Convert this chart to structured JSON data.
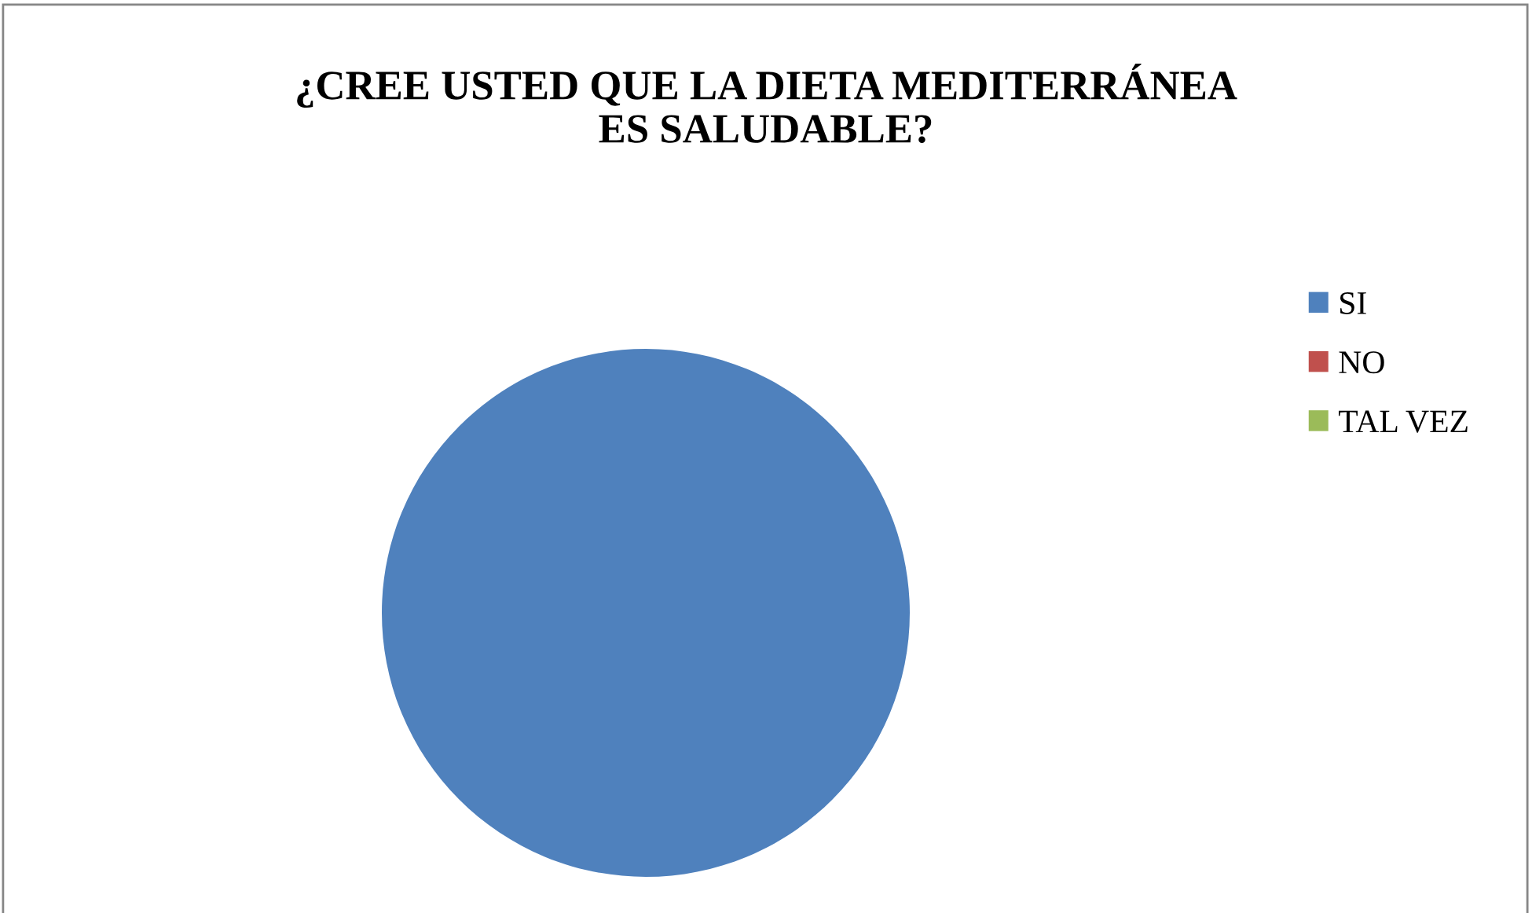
{
  "chart_data": {
    "type": "pie",
    "title": "¿CREE USTED QUE LA DIETA MEDITERRÁNEA\nES SALUDABLE?",
    "categories": [
      "SI",
      "NO",
      "TAL VEZ"
    ],
    "values": [
      100,
      0,
      0
    ],
    "colors": [
      "#4f81bd",
      "#c0504d",
      "#9bbb59"
    ],
    "legend": "right"
  }
}
